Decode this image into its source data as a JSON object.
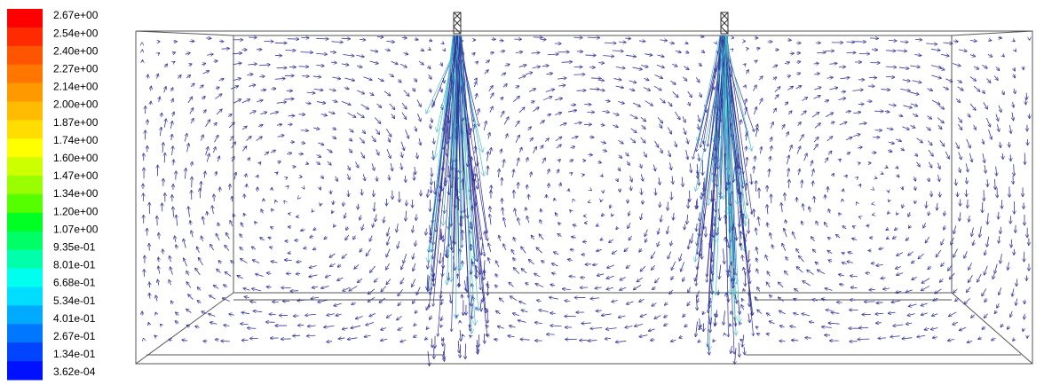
{
  "colorbar": {
    "labels": [
      "2.67e+00",
      "2.54e+00",
      "2.40e+00",
      "2.27e+00",
      "2.14e+00",
      "2.00e+00",
      "1.87e+00",
      "1.74e+00",
      "1.60e+00",
      "1.47e+00",
      "1.34e+00",
      "1.20e+00",
      "1.07e+00",
      "9.35e-01",
      "8.01e-01",
      "6.68e-01",
      "5.34e-01",
      "4.01e-01",
      "2.67e-01",
      "1.34e-01",
      "3.62e-04"
    ],
    "colors": [
      "#ff0000",
      "#ff2a00",
      "#ff5500",
      "#ff7700",
      "#ff9900",
      "#ffbb00",
      "#ffdd00",
      "#ffff00",
      "#ccff00",
      "#99ff00",
      "#55ff00",
      "#00ff22",
      "#00ff66",
      "#00ffaa",
      "#00ffee",
      "#00ddff",
      "#00aaff",
      "#0077ff",
      "#0044ff",
      "#0011ff"
    ]
  }
}
